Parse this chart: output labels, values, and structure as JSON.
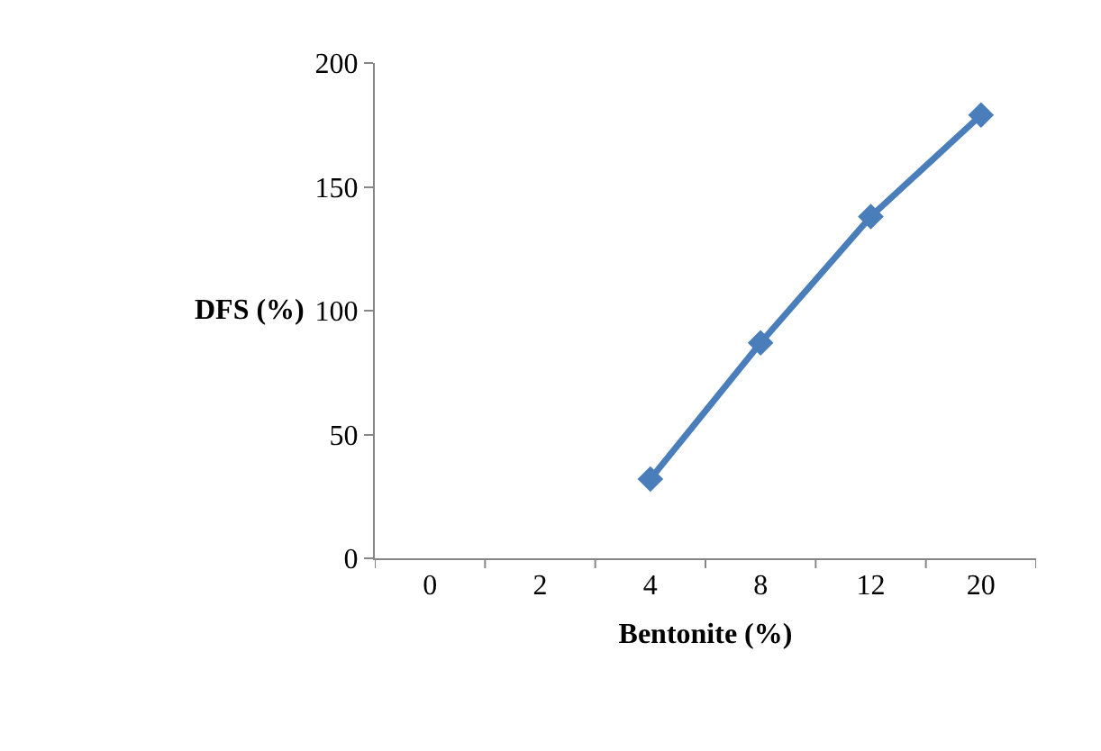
{
  "chart_data": {
    "type": "line",
    "xlabel": "Bentonite (%)",
    "ylabel": "DFS (%)",
    "categories": [
      "0",
      "2",
      "4",
      "8",
      "12",
      "20"
    ],
    "series": [
      {
        "color": "#4a7ebb",
        "values": [
          null,
          null,
          32,
          87,
          138,
          179
        ]
      }
    ],
    "ylim": [
      0,
      200
    ],
    "yticks": [
      0,
      50,
      100,
      150,
      200
    ],
    "legend": false,
    "marker": "diamond",
    "line_style": "solid"
  }
}
